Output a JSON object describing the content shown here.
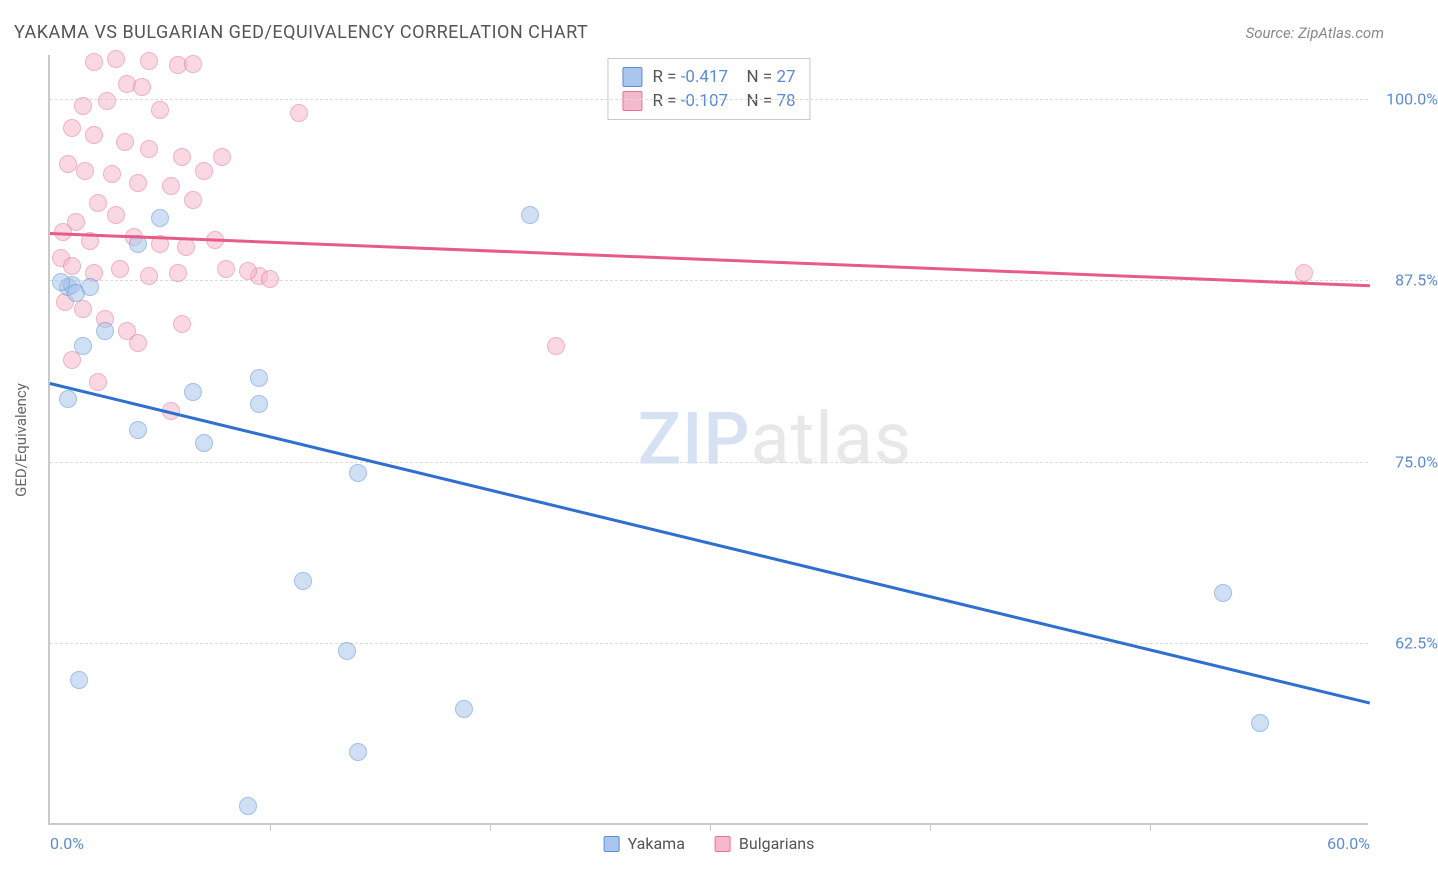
{
  "title": "YAKAMA VS BULGARIAN GED/EQUIVALENCY CORRELATION CHART",
  "source": "Source: ZipAtlas.com",
  "y_axis_title": "GED/Equivalency",
  "watermark": {
    "part1": "ZIP",
    "part2": "atlas"
  },
  "chart": {
    "type": "scatter",
    "xlim": [
      0,
      60
    ],
    "ylim": [
      50,
      103
    ],
    "background_color": "#ffffff",
    "grid_color": "#dcdcdc",
    "axis_color": "#c9c9c9",
    "x_ticks_major": [
      0,
      60
    ],
    "x_ticks_minor": [
      10,
      20,
      30,
      40,
      50
    ],
    "x_tick_labels": {
      "0": "0.0%",
      "60": "60.0%"
    },
    "y_ticks": [
      62.5,
      75,
      87.5,
      100
    ],
    "y_tick_labels": {
      "62.5": "62.5%",
      "75": "75.0%",
      "87.5": "87.5%",
      "100": "100.0%"
    },
    "label_fontsize": 16,
    "label_color": "#5b8bd4",
    "point_radius": 9,
    "point_opacity": 0.55
  },
  "series": {
    "yakama": {
      "label": "Yakama",
      "fill_color": "#a9c6ec",
      "border_color": "#5b8bd4",
      "line_color": "#2f6fd0",
      "R": "-0.417",
      "N": "27",
      "trend": {
        "x1": 0,
        "y1": 80.5,
        "x2": 60,
        "y2": 58.5
      },
      "points": [
        [
          0.8,
          87.0
        ],
        [
          1.0,
          87.2
        ],
        [
          0.5,
          87.4
        ],
        [
          1.2,
          86.6
        ],
        [
          1.8,
          87.0
        ],
        [
          4.0,
          90.0
        ],
        [
          5.0,
          91.8
        ],
        [
          2.5,
          84.0
        ],
        [
          1.5,
          83.0
        ],
        [
          0.8,
          79.3
        ],
        [
          6.5,
          79.8
        ],
        [
          4.0,
          77.2
        ],
        [
          9.5,
          80.8
        ],
        [
          9.5,
          79.0
        ],
        [
          7.0,
          76.3
        ],
        [
          14.0,
          74.2
        ],
        [
          21.8,
          92.0
        ],
        [
          11.5,
          66.8
        ],
        [
          13.5,
          62.0
        ],
        [
          18.8,
          58.0
        ],
        [
          14.0,
          55.0
        ],
        [
          9.0,
          51.3
        ],
        [
          1.3,
          60.0
        ],
        [
          53.3,
          66.0
        ],
        [
          55.0,
          57.0
        ]
      ]
    },
    "bulgarians": {
      "label": "Bulgarians",
      "fill_color": "#f6b9cb",
      "border_color": "#e97099",
      "line_color": "#e85b87",
      "R": "-0.107",
      "N": "78",
      "trend": {
        "x1": 0,
        "y1": 90.8,
        "x2": 60,
        "y2": 87.2
      },
      "points": [
        [
          2.0,
          102.5
        ],
        [
          3.0,
          102.7
        ],
        [
          4.5,
          102.6
        ],
        [
          5.8,
          102.3
        ],
        [
          6.5,
          102.4
        ],
        [
          3.5,
          101.0
        ],
        [
          4.2,
          100.8
        ],
        [
          1.5,
          99.5
        ],
        [
          2.6,
          99.8
        ],
        [
          5.0,
          99.2
        ],
        [
          1.0,
          98.0
        ],
        [
          2.0,
          97.5
        ],
        [
          3.4,
          97.0
        ],
        [
          4.5,
          96.5
        ],
        [
          6.0,
          96.0
        ],
        [
          0.8,
          95.5
        ],
        [
          1.6,
          95.0
        ],
        [
          2.8,
          94.8
        ],
        [
          4.0,
          94.2
        ],
        [
          5.5,
          94.0
        ],
        [
          7.0,
          95.0
        ],
        [
          7.8,
          96.0
        ],
        [
          11.3,
          99.0
        ],
        [
          6.5,
          93.0
        ],
        [
          2.2,
          92.8
        ],
        [
          3.0,
          92.0
        ],
        [
          1.2,
          91.5
        ],
        [
          0.6,
          90.8
        ],
        [
          1.8,
          90.2
        ],
        [
          3.8,
          90.5
        ],
        [
          5.0,
          90.0
        ],
        [
          6.2,
          89.8
        ],
        [
          7.5,
          90.3
        ],
        [
          0.5,
          89.0
        ],
        [
          1.0,
          88.5
        ],
        [
          2.0,
          88.0
        ],
        [
          3.2,
          88.3
        ],
        [
          4.5,
          87.8
        ],
        [
          5.8,
          88.0
        ],
        [
          8.0,
          88.3
        ],
        [
          9.5,
          87.8
        ],
        [
          10.0,
          87.6
        ],
        [
          9.0,
          88.1
        ],
        [
          0.7,
          86.0
        ],
        [
          1.5,
          85.5
        ],
        [
          2.5,
          84.8
        ],
        [
          3.5,
          84.0
        ],
        [
          6.0,
          84.5
        ],
        [
          4.0,
          83.2
        ],
        [
          1.0,
          82.0
        ],
        [
          2.2,
          80.5
        ],
        [
          5.5,
          78.5
        ],
        [
          23.0,
          83.0
        ],
        [
          57.0,
          88.0
        ]
      ]
    }
  },
  "legend_top": {
    "R_prefix": "R = ",
    "N_prefix": "N = "
  },
  "legend_bottom": [
    "yakama",
    "bulgarians"
  ]
}
